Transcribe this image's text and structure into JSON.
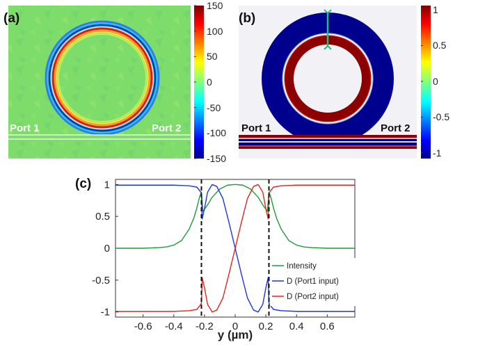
{
  "panels": {
    "a": {
      "label": "(a)",
      "port_left": "Port 1",
      "port_right": "Port 2",
      "colorbar": {
        "ticks": [
          "150",
          "100",
          "50",
          "0",
          "-50",
          "-100",
          "-150"
        ],
        "range": [
          -150,
          150
        ]
      }
    },
    "b": {
      "label": "(b)",
      "port_left": "Port 1",
      "port_right": "Port 2",
      "colorbar": {
        "ticks": [
          "1",
          "0.5",
          "0",
          "-0.5",
          "-1"
        ],
        "range": [
          -1,
          1
        ]
      }
    },
    "c": {
      "label": "(c)"
    }
  },
  "colors": {
    "field_background": "#7ddc6a",
    "intensity": "#1f9a3a",
    "port1": "#1f35e0",
    "port2": "#e0261f",
    "ring_dark_red": "#8b0000",
    "ring_dark_blue": "#00008f",
    "cut_line": "#22c07a"
  },
  "chart_data": {
    "type": "line",
    "xlabel": "y (µm)",
    "ylabel": "",
    "xlim": [
      -0.78,
      0.78
    ],
    "ylim": [
      -1.08,
      1.08
    ],
    "x_ticks": [
      "-0.6",
      "-0.4",
      "-0.2",
      "0",
      "0.2",
      "0.4",
      "0.6"
    ],
    "y_ticks": [
      "1",
      "0.5",
      "0",
      "-0.5",
      "-1"
    ],
    "vlines": [
      -0.22,
      0.22
    ],
    "legend_position": "bottom-right",
    "series": [
      {
        "name": "Intensity",
        "color": "#1f9a3a",
        "x": [
          -0.78,
          -0.6,
          -0.5,
          -0.45,
          -0.4,
          -0.35,
          -0.3,
          -0.27,
          -0.25,
          -0.24,
          -0.23,
          -0.22,
          -0.21,
          -0.18,
          -0.15,
          -0.1,
          -0.05,
          0,
          0.05,
          0.1,
          0.15,
          0.18,
          0.21,
          0.22,
          0.23,
          0.24,
          0.25,
          0.27,
          0.3,
          0.35,
          0.4,
          0.45,
          0.5,
          0.6,
          0.78
        ],
        "y": [
          0.0,
          0.0,
          0.01,
          0.02,
          0.05,
          0.12,
          0.3,
          0.47,
          0.63,
          0.73,
          0.82,
          0.88,
          0.58,
          0.68,
          0.8,
          0.93,
          0.99,
          1.0,
          0.99,
          0.93,
          0.8,
          0.68,
          0.58,
          0.88,
          0.82,
          0.73,
          0.63,
          0.47,
          0.3,
          0.12,
          0.05,
          0.02,
          0.01,
          0.0,
          0.0
        ]
      },
      {
        "name": "D (Port1 input)",
        "color": "#1f35e0",
        "x": [
          -0.78,
          -0.4,
          -0.3,
          -0.25,
          -0.23,
          -0.22,
          -0.215,
          -0.2,
          -0.18,
          -0.15,
          -0.12,
          -0.08,
          -0.04,
          0,
          0.04,
          0.08,
          0.12,
          0.15,
          0.18,
          0.2,
          0.215,
          0.22,
          0.23,
          0.25,
          0.3,
          0.4,
          0.78
        ],
        "y": [
          0.99,
          0.99,
          0.98,
          0.96,
          0.9,
          0.86,
          0.46,
          0.62,
          0.88,
          1.0,
          0.97,
          0.78,
          0.4,
          -0.0,
          -0.4,
          -0.78,
          -0.97,
          -1.0,
          -0.88,
          -0.62,
          -0.46,
          -0.86,
          -0.9,
          -0.96,
          -0.98,
          -0.99,
          -0.99
        ]
      },
      {
        "name": "D (Port2 input)",
        "color": "#e0261f",
        "x": [
          -0.78,
          -0.4,
          -0.3,
          -0.25,
          -0.23,
          -0.22,
          -0.215,
          -0.2,
          -0.18,
          -0.15,
          -0.12,
          -0.08,
          -0.04,
          0,
          0.04,
          0.08,
          0.12,
          0.15,
          0.18,
          0.2,
          0.215,
          0.22,
          0.23,
          0.25,
          0.3,
          0.4,
          0.78
        ],
        "y": [
          -0.99,
          -0.99,
          -0.98,
          -0.96,
          -0.9,
          -0.86,
          -0.46,
          -0.62,
          -0.88,
          -1.0,
          -0.97,
          -0.78,
          -0.4,
          0.0,
          0.4,
          0.78,
          0.97,
          1.0,
          0.88,
          0.62,
          0.46,
          0.86,
          0.9,
          0.96,
          0.98,
          0.99,
          0.99
        ]
      }
    ]
  }
}
